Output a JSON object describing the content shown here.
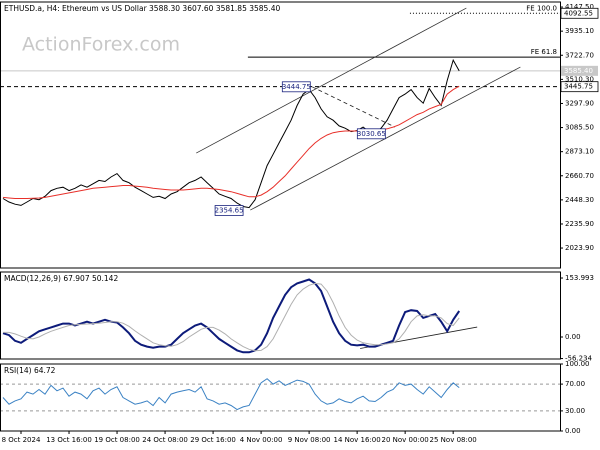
{
  "chart_data": [
    {
      "type": "line",
      "title": "ETHUSD.a, H4:  Ethereum vs US Dollar  3588.30 3607.60 3581.85 3585.40",
      "watermark": "ActionForex.com",
      "xlim": [
        -0.5,
        92.8
      ],
      "ylim": [
        1848,
        4192
      ],
      "yticks": [
        {
          "value": 4147.5,
          "label": "4147.50"
        },
        {
          "value": 3935.1,
          "label": "3935.10"
        },
        {
          "value": 3722.7,
          "label": "3722.70"
        },
        {
          "value": 3510.3,
          "label": "3510.30"
        },
        {
          "value": 3297.9,
          "label": "3297.90"
        },
        {
          "value": 3085.5,
          "label": "3085.50"
        },
        {
          "value": 2873.1,
          "label": "2873.10"
        },
        {
          "value": 2660.7,
          "label": "2660.70"
        },
        {
          "value": 2448.3,
          "label": "2448.30"
        },
        {
          "value": 2235.9,
          "label": "2235.90"
        },
        {
          "value": 2023.9,
          "label": "2023.90"
        }
      ],
      "series": [
        {
          "color": "#000000",
          "values": [
            2460,
            2430,
            2410,
            2400,
            2430,
            2460,
            2450,
            2480,
            2530,
            2550,
            2560,
            2530,
            2550,
            2580,
            2560,
            2590,
            2620,
            2610,
            2650,
            2680,
            2620,
            2600,
            2560,
            2530,
            2500,
            2470,
            2480,
            2460,
            2500,
            2520,
            2560,
            2600,
            2620,
            2650,
            2600,
            2550,
            2500,
            2480,
            2460,
            2420,
            2390,
            2380,
            2450,
            2600,
            2750,
            2850,
            2950,
            3050,
            3150,
            3280,
            3380,
            3420,
            3350,
            3250,
            3180,
            3150,
            3100,
            3080,
            3050,
            3060,
            3090,
            3050,
            3040,
            3080,
            3150,
            3250,
            3350,
            3380,
            3420,
            3350,
            3300,
            3430,
            3350,
            3280,
            3500,
            3680,
            3585
          ]
        },
        {
          "color": "#e8302a",
          "values": [
            2470,
            2465,
            2460,
            2460,
            2460,
            2462,
            2465,
            2470,
            2480,
            2490,
            2500,
            2510,
            2520,
            2530,
            2540,
            2550,
            2555,
            2560,
            2565,
            2570,
            2575,
            2575,
            2570,
            2565,
            2560,
            2550,
            2545,
            2540,
            2535,
            2535,
            2535,
            2540,
            2545,
            2550,
            2550,
            2545,
            2540,
            2530,
            2520,
            2505,
            2490,
            2475,
            2475,
            2490,
            2520,
            2560,
            2610,
            2660,
            2720,
            2780,
            2840,
            2900,
            2950,
            2990,
            3020,
            3040,
            3050,
            3055,
            3055,
            3055,
            3055,
            3055,
            3060,
            3065,
            3075,
            3090,
            3110,
            3140,
            3170,
            3200,
            3220,
            3250,
            3270,
            3290,
            3380,
            3420,
            3450
          ]
        }
      ],
      "trendlines": [
        {
          "x": [
            32.2,
            77.2
          ],
          "values": [
            2860.8,
            4138.7
          ],
          "line": "solid"
        },
        {
          "x": [
            41.2,
            86.2
          ],
          "values": [
            2358.4,
            3618.7
          ],
          "line": "solid"
        },
        {
          "x": [
            51.5,
            65.3
          ],
          "values": [
            3444.75,
            3089.9
          ],
          "line": "dashed"
        }
      ],
      "fib_levels": [
        {
          "label": "FE 100.0",
          "value": 4092.55,
          "from": 67.8,
          "line": "dotted"
        },
        {
          "label": "FE 61.8",
          "value": 3706,
          "from": 40.8,
          "line": "solid"
        }
      ],
      "axis_labels": [
        {
          "value": 4092.55,
          "label": "4092.55"
        },
        {
          "value": 3585.4,
          "label": "3585.40",
          "line": "solid",
          "color": "#c8c8c8"
        },
        {
          "value": 3445.75,
          "label": "3445.75",
          "line": "dashed"
        }
      ],
      "pivots": [
        {
          "x": 51.2,
          "value": 3444.75
        },
        {
          "x": 63.7,
          "value": 3030.65
        },
        {
          "x": 40,
          "value": 2354.65
        }
      ]
    },
    {
      "type": "line",
      "title": "MACD(12,26,9) 67.907 50.142",
      "xlim": [
        -0.5,
        92.8
      ],
      "ylim": [
        -57.4,
        169.7
      ],
      "yticks": [
        153.993,
        {
          "value": 0,
          "label": "0.00"
        },
        -56.234
      ],
      "series": [
        {
          "color": "#0d1b7a",
          "width": 2,
          "values": [
            10,
            5,
            -10,
            -15,
            -5,
            5,
            15,
            20,
            25,
            30,
            35,
            35,
            30,
            35,
            40,
            35,
            40,
            45,
            40,
            38,
            25,
            10,
            -10,
            -20,
            -25,
            -28,
            -25,
            -25,
            -20,
            -5,
            10,
            20,
            30,
            35,
            25,
            10,
            -5,
            -15,
            -25,
            -35,
            -40,
            -40,
            -35,
            -20,
            10,
            50,
            80,
            110,
            130,
            140,
            145,
            150,
            140,
            120,
            80,
            40,
            10,
            -10,
            -20,
            -22,
            -20,
            -25,
            -25,
            -20,
            -15,
            -10,
            30,
            65,
            70,
            68,
            50,
            55,
            60,
            40,
            15,
            45,
            68
          ]
        },
        {
          "color": "#b0b0b0",
          "width": 1,
          "values": [
            12,
            12,
            8,
            2,
            -3,
            -5,
            0,
            8,
            15,
            20,
            25,
            30,
            32,
            33,
            34,
            35,
            36,
            38,
            40,
            40,
            36,
            28,
            16,
            5,
            -5,
            -15,
            -20,
            -23,
            -24,
            -20,
            -12,
            0,
            10,
            20,
            25,
            25,
            18,
            8,
            -5,
            -15,
            -25,
            -32,
            -36,
            -35,
            -25,
            -5,
            25,
            55,
            85,
            110,
            125,
            135,
            140,
            138,
            120,
            90,
            55,
            25,
            5,
            -8,
            -15,
            -18,
            -20,
            -20,
            -18,
            -15,
            -5,
            15,
            40,
            55,
            58,
            55,
            55,
            50,
            35,
            30,
            50
          ]
        }
      ],
      "trendlines": [
        {
          "x": [
            59.5,
            79
          ],
          "values": [
            -30,
            26
          ],
          "line": "solid"
        }
      ]
    },
    {
      "type": "line",
      "title": "RSI(14) 64.72",
      "xlim": [
        -0.5,
        92.8
      ],
      "ylim": [
        0,
        100
      ],
      "yticks": [
        {
          "value": 100,
          "label": "100.00"
        },
        {
          "value": 70,
          "label": "70.00"
        },
        {
          "value": 30,
          "label": "30.00"
        },
        {
          "value": 0,
          "label": "0.00"
        }
      ],
      "hlines": [
        70,
        30
      ],
      "xticks": [
        {
          "value": 3,
          "label": "8 Oct 2024"
        },
        {
          "value": 11,
          "label": "13 Oct 16:00"
        },
        {
          "value": 19,
          "label": "19 Oct 08:00"
        },
        {
          "value": 27,
          "label": "24 Oct 08:00"
        },
        {
          "value": 35,
          "label": "29 Oct 16:00"
        },
        {
          "value": 43,
          "label": "4 Nov 00:00"
        },
        {
          "value": 51,
          "label": "9 Nov 08:00"
        },
        {
          "value": 59,
          "label": "14 Nov 16:00"
        },
        {
          "value": 67,
          "label": "20 Nov 00:00"
        },
        {
          "value": 75,
          "label": "25 Nov 08:00"
        }
      ],
      "series": [
        {
          "color": "#3b82c4",
          "width": 1,
          "values": [
            50,
            40,
            45,
            48,
            58,
            55,
            62,
            55,
            68,
            60,
            64,
            52,
            58,
            55,
            48,
            60,
            64,
            55,
            62,
            66,
            50,
            45,
            40,
            42,
            45,
            38,
            50,
            42,
            55,
            58,
            60,
            62,
            58,
            66,
            48,
            45,
            40,
            42,
            38,
            32,
            36,
            38,
            55,
            72,
            78,
            70,
            75,
            68,
            72,
            76,
            74,
            70,
            55,
            45,
            40,
            42,
            48,
            44,
            42,
            48,
            52,
            45,
            44,
            50,
            58,
            62,
            72,
            68,
            70,
            62,
            55,
            66,
            58,
            50,
            62,
            72,
            64.72
          ]
        }
      ]
    }
  ]
}
